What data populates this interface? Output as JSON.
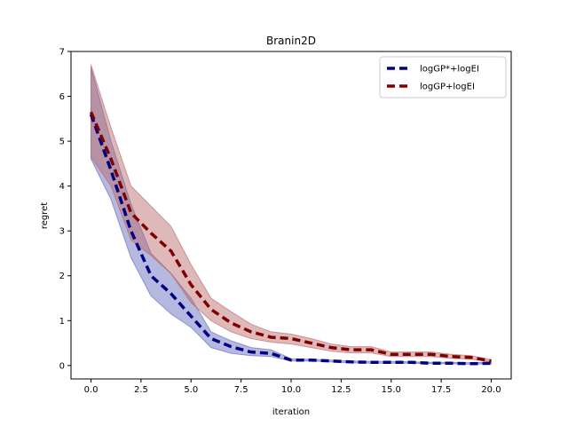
{
  "chart_data": {
    "type": "line",
    "title": "Branin2D",
    "xlabel": "iteration",
    "ylabel": "regret",
    "xlim": [
      -1.0,
      21.0
    ],
    "ylim": [
      -0.3,
      7.0
    ],
    "xticks": [
      0.0,
      2.5,
      5.0,
      7.5,
      10.0,
      12.5,
      15.0,
      17.5,
      20.0
    ],
    "xtick_labels": [
      "0.0",
      "2.5",
      "5.0",
      "7.5",
      "10.0",
      "12.5",
      "15.0",
      "17.5",
      "20.0"
    ],
    "yticks": [
      0,
      1,
      2,
      3,
      4,
      5,
      6,
      7
    ],
    "ytick_labels": [
      "0",
      "1",
      "2",
      "3",
      "4",
      "5",
      "6",
      "7"
    ],
    "grid": false,
    "legend": "top-right",
    "x": [
      0,
      1,
      2,
      3,
      4,
      5,
      6,
      7,
      8,
      9,
      10,
      11,
      12,
      13,
      14,
      15,
      16,
      17,
      18,
      19,
      20
    ],
    "series": [
      {
        "name": "logGP*+logEI",
        "color": "#000080",
        "fill": "#5a64b8",
        "values": [
          5.6,
          4.35,
          3.0,
          2.0,
          1.6,
          1.1,
          0.6,
          0.42,
          0.3,
          0.27,
          0.12,
          0.12,
          0.1,
          0.08,
          0.07,
          0.07,
          0.07,
          0.05,
          0.05,
          0.04,
          0.05
        ],
        "upper": [
          6.65,
          5.0,
          3.6,
          2.5,
          2.05,
          1.5,
          0.75,
          0.55,
          0.4,
          0.35,
          0.15,
          0.14,
          0.12,
          0.1,
          0.09,
          0.09,
          0.08,
          0.07,
          0.07,
          0.06,
          0.07
        ],
        "lower": [
          4.6,
          3.7,
          2.4,
          1.55,
          1.15,
          0.85,
          0.4,
          0.27,
          0.22,
          0.2,
          0.1,
          0.1,
          0.08,
          0.06,
          0.05,
          0.05,
          0.05,
          0.04,
          0.04,
          0.03,
          0.04
        ]
      },
      {
        "name": "logGP+logEI",
        "color": "#800000",
        "fill": "#b86464",
        "values": [
          5.65,
          4.6,
          3.4,
          2.95,
          2.55,
          1.8,
          1.25,
          0.95,
          0.75,
          0.63,
          0.6,
          0.5,
          0.4,
          0.35,
          0.35,
          0.25,
          0.25,
          0.25,
          0.2,
          0.18,
          0.1
        ],
        "upper": [
          6.7,
          5.3,
          4.0,
          3.55,
          3.1,
          2.25,
          1.5,
          1.2,
          0.92,
          0.75,
          0.7,
          0.6,
          0.48,
          0.42,
          0.42,
          0.3,
          0.3,
          0.3,
          0.25,
          0.22,
          0.13
        ],
        "lower": [
          4.65,
          4.0,
          2.8,
          2.45,
          2.05,
          1.4,
          1.0,
          0.75,
          0.6,
          0.52,
          0.48,
          0.4,
          0.32,
          0.28,
          0.28,
          0.2,
          0.2,
          0.2,
          0.16,
          0.14,
          0.08
        ]
      }
    ]
  }
}
